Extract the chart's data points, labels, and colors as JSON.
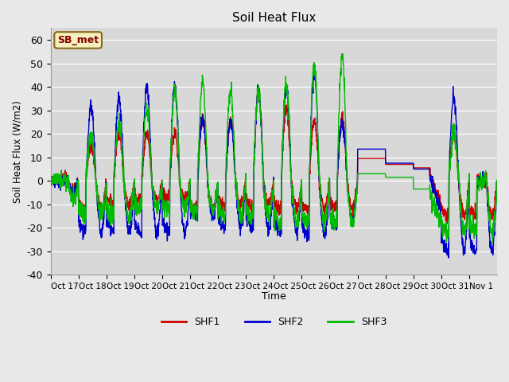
{
  "title": "Soil Heat Flux",
  "ylabel": "Soil Heat Flux (W/m2)",
  "xlabel": "Time",
  "ylim": [
    -40,
    65
  ],
  "yticks": [
    -40,
    -30,
    -20,
    -10,
    0,
    10,
    20,
    30,
    40,
    50,
    60
  ],
  "fig_bg": "#e8e8e8",
  "plot_bg": "#d8d8d8",
  "label_box": "SB_met",
  "legend_labels": [
    "SHF1",
    "SHF2",
    "SHF3"
  ],
  "line_colors": [
    "#cc0000",
    "#0000cc",
    "#00bb00"
  ],
  "line_width": 1.0,
  "xtick_labels": [
    "Oct 17",
    "Oct 18",
    "Oct 19",
    "Oct 20",
    "Oct 21",
    "Oct 22",
    "Oct 23",
    "Oct 24",
    "Oct 25",
    "Oct 26",
    "Oct 27",
    "Oct 28",
    "Oct 29",
    "Oct 30",
    "Oct 31",
    "Nov 1"
  ]
}
